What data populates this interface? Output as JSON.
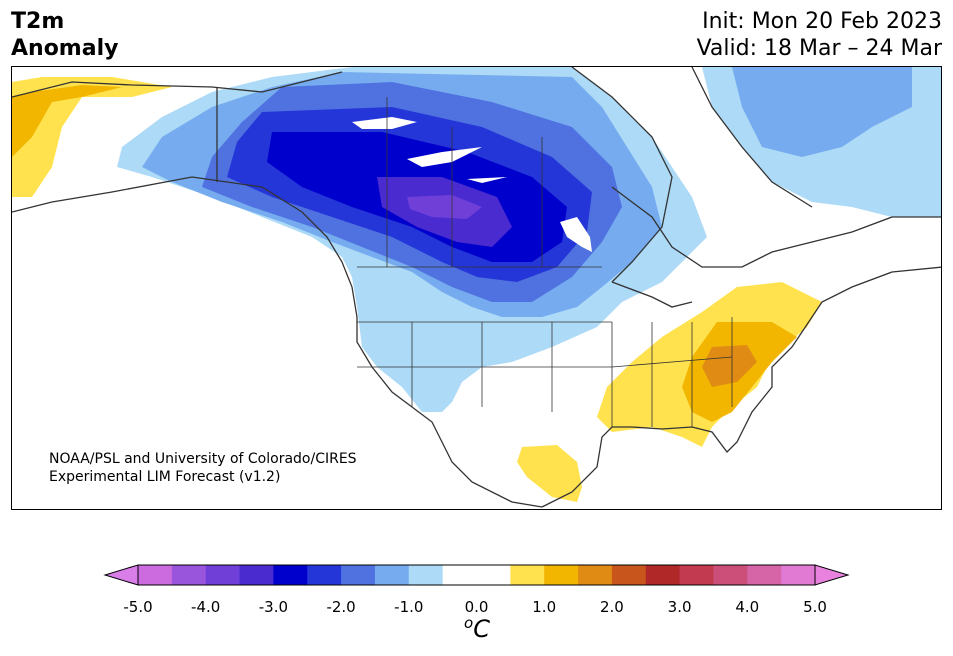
{
  "header": {
    "title_line1": "T2m",
    "title_line2": "Anomaly",
    "init_text": "Init: Mon 20 Feb 2023",
    "valid_text": "Valid: 18 Mar – 24 Mar"
  },
  "credit": {
    "line1": "NOAA/PSL and University of Colorado/CIRES",
    "line2": "Experimental LIM Forecast (v1.2)"
  },
  "colorbar": {
    "tick_labels": [
      "-5.0",
      "-4.0",
      "-3.0",
      "-2.0",
      "-1.0",
      "0.0",
      "1.0",
      "2.0",
      "3.0",
      "4.0",
      "5.0"
    ],
    "unit_base": "C",
    "unit_sup": "o",
    "colors": [
      "#cc6ae0",
      "#9a55dd",
      "#6f3fd8",
      "#4a2bd0",
      "#0000cd",
      "#2536d8",
      "#4f72e0",
      "#76acef",
      "#addaf7",
      "#ffffff",
      "#ffffff",
      "#ffe24e",
      "#f2b600",
      "#e08c14",
      "#c8561c",
      "#b02828",
      "#c23a50",
      "#cc4f7a",
      "#d665a8",
      "#e07ad2"
    ],
    "under_color": "#d97ee8",
    "over_color": "#e882de"
  },
  "map": {
    "region": "North America",
    "field": "2m temperature anomaly"
  }
}
